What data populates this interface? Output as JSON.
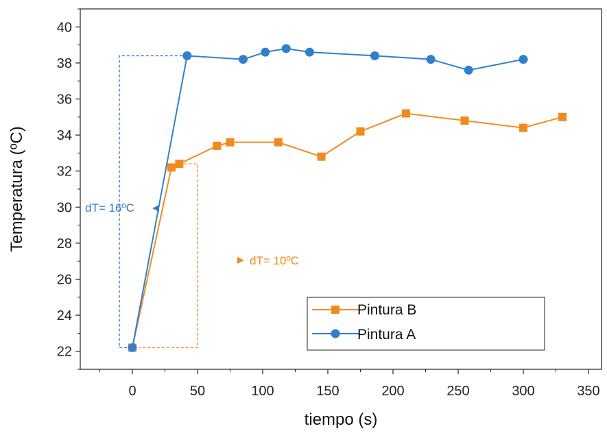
{
  "chart_data": {
    "type": "line",
    "xlabel": "tiempo (s)",
    "ylabel": "Temperatura (ºC)",
    "xlim": [
      -40,
      360
    ],
    "ylim": [
      21,
      41
    ],
    "xticks": [
      0,
      50,
      100,
      150,
      200,
      250,
      300,
      350
    ],
    "yticks": [
      22,
      24,
      26,
      28,
      30,
      32,
      34,
      36,
      38,
      40
    ],
    "legend_position": "bottom-right",
    "grid": false,
    "series": [
      {
        "name": "Pintura B",
        "color": "#f28a1e",
        "marker": "square",
        "x": [
          0,
          30,
          36,
          65,
          75,
          112,
          145,
          175,
          210,
          255,
          300,
          330
        ],
        "y": [
          22.2,
          32.2,
          32.4,
          33.4,
          33.6,
          33.6,
          32.8,
          34.2,
          35.2,
          34.8,
          34.4,
          35.0
        ]
      },
      {
        "name": "Pintura A",
        "color": "#2f7fcb",
        "marker": "circle",
        "x": [
          0,
          42,
          85,
          102,
          118,
          136,
          186,
          229,
          258,
          300
        ],
        "y": [
          22.2,
          38.4,
          38.2,
          38.6,
          38.8,
          38.6,
          38.4,
          38.2,
          37.6,
          38.2
        ]
      }
    ],
    "annotations": [
      {
        "text": "dT= 16ºC",
        "color": "#2f7fcb"
      },
      {
        "text": "dT= 10ºC",
        "color": "#f28a1e"
      }
    ]
  }
}
